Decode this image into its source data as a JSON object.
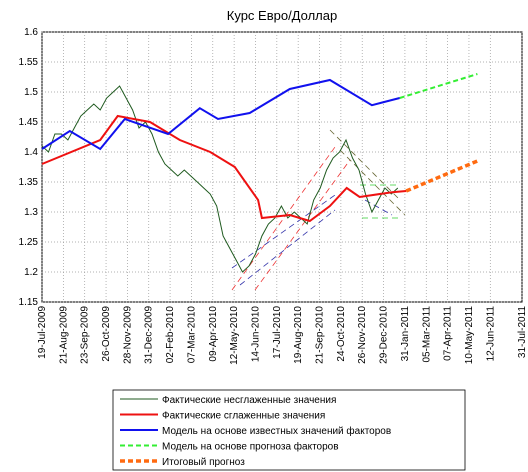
{
  "chart_data": {
    "type": "line",
    "title": "Курс Евро/Доллар",
    "xlim": [
      0,
      742
    ],
    "ylim": [
      1.15,
      1.6
    ],
    "grid": true,
    "yticks": [
      {
        "value": 1.15,
        "label": "1.15"
      },
      {
        "value": 1.2,
        "label": "1.2"
      },
      {
        "value": 1.25,
        "label": "1.25"
      },
      {
        "value": 1.3,
        "label": "1.3"
      },
      {
        "value": 1.35,
        "label": "1.35"
      },
      {
        "value": 1.4,
        "label": "1.4"
      },
      {
        "value": 1.45,
        "label": "1.45"
      },
      {
        "value": 1.5,
        "label": "1.5"
      },
      {
        "value": 1.55,
        "label": "1.55"
      },
      {
        "value": 1.6,
        "label": "1.6"
      }
    ],
    "xticks": [
      {
        "value": 0,
        "label": "19-Jul-2009"
      },
      {
        "value": 33,
        "label": "21-Aug-2009"
      },
      {
        "value": 66,
        "label": "23-Sep-2009"
      },
      {
        "value": 99,
        "label": "26-Oct-2009"
      },
      {
        "value": 132,
        "label": "28-Nov-2009"
      },
      {
        "value": 165,
        "label": "31-Dec-2009"
      },
      {
        "value": 198,
        "label": "02-Feb-2010"
      },
      {
        "value": 231,
        "label": "07-Mar-2010"
      },
      {
        "value": 264,
        "label": "09-Apr-2010"
      },
      {
        "value": 297,
        "label": "12-May-2010"
      },
      {
        "value": 330,
        "label": "14-Jun-2010"
      },
      {
        "value": 363,
        "label": "17-Jul-2010"
      },
      {
        "value": 396,
        "label": "19-Aug-2010"
      },
      {
        "value": 429,
        "label": "21-Sep-2010"
      },
      {
        "value": 462,
        "label": "24-Oct-2010"
      },
      {
        "value": 495,
        "label": "26-Nov-2010"
      },
      {
        "value": 528,
        "label": "29-Dec-2010"
      },
      {
        "value": 561,
        "label": "31-Jan-2011"
      },
      {
        "value": 594,
        "label": "05-Mar-2011"
      },
      {
        "value": 627,
        "label": "07-Apr-2011"
      },
      {
        "value": 660,
        "label": "10-May-2011"
      },
      {
        "value": 693,
        "label": "12-Jun-2011"
      },
      {
        "value": 742,
        "label": "31-Jul-2011"
      }
    ],
    "series": [
      {
        "name": "Фактические несглаженные значения",
        "color": "#1f5a1f",
        "width": 1,
        "dash": "",
        "x": [
          0,
          10,
          20,
          30,
          40,
          50,
          60,
          70,
          80,
          90,
          100,
          110,
          120,
          130,
          140,
          150,
          160,
          170,
          180,
          190,
          200,
          210,
          220,
          230,
          240,
          250,
          260,
          270,
          280,
          290,
          300,
          310,
          320,
          330,
          340,
          350,
          360,
          370,
          380,
          390,
          400,
          410,
          420,
          430,
          440,
          450,
          460,
          470,
          480,
          490,
          500,
          510,
          520,
          530,
          540,
          550
        ],
        "values": [
          1.41,
          1.4,
          1.43,
          1.43,
          1.42,
          1.44,
          1.46,
          1.47,
          1.48,
          1.47,
          1.49,
          1.5,
          1.51,
          1.49,
          1.47,
          1.44,
          1.45,
          1.43,
          1.4,
          1.38,
          1.37,
          1.36,
          1.37,
          1.36,
          1.35,
          1.34,
          1.33,
          1.31,
          1.26,
          1.24,
          1.22,
          1.2,
          1.21,
          1.23,
          1.26,
          1.28,
          1.29,
          1.31,
          1.29,
          1.3,
          1.29,
          1.28,
          1.32,
          1.34,
          1.37,
          1.39,
          1.4,
          1.42,
          1.39,
          1.37,
          1.33,
          1.3,
          1.32,
          1.34,
          1.33,
          1.34
        ]
      },
      {
        "name": "Фактические сглаженные значения",
        "color": "#ee1111",
        "width": 2,
        "dash": "",
        "x": [
          0,
          90,
          117,
          167,
          213,
          260,
          298,
          334,
          340,
          383,
          414,
          445,
          471,
          491,
          541,
          563
        ],
        "values": [
          1.38,
          1.42,
          1.46,
          1.45,
          1.42,
          1.4,
          1.375,
          1.32,
          1.29,
          1.295,
          1.285,
          1.31,
          1.34,
          1.325,
          1.333,
          1.335
        ]
      },
      {
        "name": "Модель на основе известных значений факторов",
        "color": "#1111ee",
        "width": 2,
        "dash": "",
        "x": [
          0,
          43,
          90,
          128,
          195,
          244,
          272,
          321,
          383,
          445,
          510,
          553
        ],
        "values": [
          1.405,
          1.435,
          1.405,
          1.455,
          1.43,
          1.473,
          1.455,
          1.465,
          1.505,
          1.52,
          1.478,
          1.49
        ]
      },
      {
        "name": "Модель на основе прогноза факторов",
        "color": "#33ee33",
        "width": 2,
        "dash": "5 3",
        "x": [
          553,
          673
        ],
        "values": [
          1.49,
          1.53
        ]
      },
      {
        "name": "Итоговый прогноз",
        "color": "#ff6a10",
        "width": 3.5,
        "dash": "5 3",
        "x": [
          563,
          673
        ],
        "values": [
          1.335,
          1.385
        ]
      }
    ]
  }
}
